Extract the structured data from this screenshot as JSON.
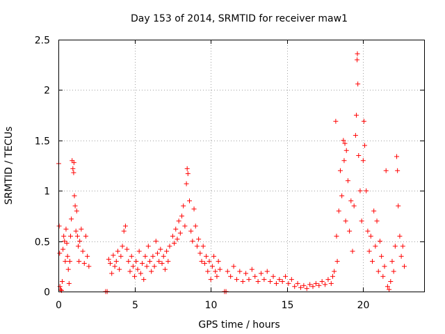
{
  "chart_data": {
    "type": "scatter",
    "title": "Day 153 of 2014, SRMTID for receiver maw1",
    "xlabel": "GPS time / hours",
    "ylabel": "SRMTID / TECUs",
    "xlim": [
      0,
      24
    ],
    "ylim": [
      0,
      2.5
    ],
    "xticks": [
      0,
      5,
      10,
      15,
      20
    ],
    "yticks": [
      0,
      0.5,
      1,
      1.5,
      2,
      2.5
    ],
    "xtick_labels": [
      "0",
      "5",
      "10",
      "15",
      "20"
    ],
    "ytick_labels": [
      "0",
      "0.5",
      "1",
      "1.5",
      "2",
      "2.5"
    ],
    "grid": true,
    "marker": "+",
    "series": [
      {
        "name": "maw1",
        "color": "#ff0000",
        "points": [
          [
            0.02,
            1.27
          ],
          [
            0.05,
            0.65
          ],
          [
            0.08,
            0.38
          ],
          [
            0.1,
            0.05
          ],
          [
            0.15,
            0.02
          ],
          [
            0.2,
            0.01
          ],
          [
            0.25,
            0.1
          ],
          [
            0.3,
            0.42
          ],
          [
            0.35,
            0.55
          ],
          [
            0.4,
            0.5
          ],
          [
            0.45,
            0.3
          ],
          [
            0.5,
            0.62
          ],
          [
            0.55,
            0.48
          ],
          [
            0.6,
            0.35
          ],
          [
            0.65,
            0.22
          ],
          [
            0.7,
            0.08
          ],
          [
            0.75,
            0.3
          ],
          [
            0.8,
            0.55
          ],
          [
            0.85,
            0.72
          ],
          [
            0.9,
            1.3
          ],
          [
            0.95,
            1.22
          ],
          [
            1.0,
            1.18
          ],
          [
            1.02,
            1.28
          ],
          [
            1.05,
            0.95
          ],
          [
            1.1,
            0.85
          ],
          [
            1.15,
            0.6
          ],
          [
            1.2,
            0.8
          ],
          [
            1.25,
            0.55
          ],
          [
            1.3,
            0.45
          ],
          [
            1.35,
            0.3
          ],
          [
            1.4,
            0.5
          ],
          [
            1.5,
            0.62
          ],
          [
            1.6,
            0.4
          ],
          [
            1.7,
            0.28
          ],
          [
            1.8,
            0.55
          ],
          [
            1.9,
            0.35
          ],
          [
            2.0,
            0.25
          ],
          [
            3.1,
            0.0
          ],
          [
            3.2,
            0.0
          ],
          [
            3.3,
            0.32
          ],
          [
            3.4,
            0.28
          ],
          [
            3.5,
            0.18
          ],
          [
            3.6,
            0.36
          ],
          [
            3.7,
            0.25
          ],
          [
            3.8,
            0.3
          ],
          [
            3.9,
            0.4
          ],
          [
            4.0,
            0.22
          ],
          [
            4.1,
            0.35
          ],
          [
            4.2,
            0.45
          ],
          [
            4.3,
            0.6
          ],
          [
            4.4,
            0.65
          ],
          [
            4.5,
            0.42
          ],
          [
            4.6,
            0.3
          ],
          [
            4.7,
            0.2
          ],
          [
            4.8,
            0.35
          ],
          [
            4.9,
            0.25
          ],
          [
            5.0,
            0.15
          ],
          [
            5.1,
            0.3
          ],
          [
            5.2,
            0.22
          ],
          [
            5.3,
            0.4
          ],
          [
            5.4,
            0.18
          ],
          [
            5.5,
            0.28
          ],
          [
            5.6,
            0.12
          ],
          [
            5.7,
            0.35
          ],
          [
            5.8,
            0.25
          ],
          [
            5.9,
            0.45
          ],
          [
            6.0,
            0.3
          ],
          [
            6.1,
            0.2
          ],
          [
            6.2,
            0.35
          ],
          [
            6.3,
            0.25
          ],
          [
            6.4,
            0.5
          ],
          [
            6.5,
            0.38
          ],
          [
            6.6,
            0.3
          ],
          [
            6.7,
            0.42
          ],
          [
            6.8,
            0.28
          ],
          [
            6.9,
            0.35
          ],
          [
            7.0,
            0.22
          ],
          [
            7.1,
            0.4
          ],
          [
            7.2,
            0.3
          ],
          [
            7.3,
            0.45
          ],
          [
            7.5,
            0.55
          ],
          [
            7.6,
            0.48
          ],
          [
            7.7,
            0.62
          ],
          [
            7.8,
            0.52
          ],
          [
            7.9,
            0.7
          ],
          [
            8.0,
            0.58
          ],
          [
            8.1,
            0.75
          ],
          [
            8.2,
            0.85
          ],
          [
            8.3,
            0.65
          ],
          [
            8.4,
            1.07
          ],
          [
            8.45,
            1.22
          ],
          [
            8.5,
            1.17
          ],
          [
            8.6,
            0.9
          ],
          [
            8.7,
            0.6
          ],
          [
            8.8,
            0.5
          ],
          [
            8.9,
            0.82
          ],
          [
            9.0,
            0.65
          ],
          [
            9.1,
            0.45
          ],
          [
            9.2,
            0.52
          ],
          [
            9.3,
            0.38
          ],
          [
            9.4,
            0.3
          ],
          [
            9.5,
            0.45
          ],
          [
            9.6,
            0.28
          ],
          [
            9.7,
            0.35
          ],
          [
            9.8,
            0.2
          ],
          [
            9.9,
            0.3
          ],
          [
            10.0,
            0.12
          ],
          [
            10.1,
            0.25
          ],
          [
            10.2,
            0.35
          ],
          [
            10.3,
            0.2
          ],
          [
            10.4,
            0.15
          ],
          [
            10.5,
            0.3
          ],
          [
            10.6,
            0.22
          ],
          [
            10.9,
            0.0
          ],
          [
            11.0,
            0.0
          ],
          [
            11.1,
            0.2
          ],
          [
            11.3,
            0.15
          ],
          [
            11.5,
            0.25
          ],
          [
            11.7,
            0.12
          ],
          [
            11.9,
            0.2
          ],
          [
            12.1,
            0.1
          ],
          [
            12.3,
            0.18
          ],
          [
            12.5,
            0.12
          ],
          [
            12.7,
            0.22
          ],
          [
            12.9,
            0.15
          ],
          [
            13.1,
            0.1
          ],
          [
            13.3,
            0.18
          ],
          [
            13.5,
            0.12
          ],
          [
            13.7,
            0.2
          ],
          [
            13.9,
            0.1
          ],
          [
            14.1,
            0.15
          ],
          [
            14.3,
            0.08
          ],
          [
            14.5,
            0.12
          ],
          [
            14.7,
            0.1
          ],
          [
            14.9,
            0.15
          ],
          [
            15.1,
            0.08
          ],
          [
            15.3,
            0.12
          ],
          [
            15.5,
            0.05
          ],
          [
            15.7,
            0.08
          ],
          [
            15.9,
            0.04
          ],
          [
            16.1,
            0.06
          ],
          [
            16.3,
            0.03
          ],
          [
            16.5,
            0.07
          ],
          [
            16.7,
            0.05
          ],
          [
            16.9,
            0.08
          ],
          [
            17.1,
            0.06
          ],
          [
            17.3,
            0.1
          ],
          [
            17.5,
            0.07
          ],
          [
            17.7,
            0.12
          ],
          [
            17.9,
            0.08
          ],
          [
            18.0,
            0.15
          ],
          [
            18.1,
            0.2
          ],
          [
            18.2,
            1.69
          ],
          [
            18.25,
            0.55
          ],
          [
            18.3,
            0.3
          ],
          [
            18.4,
            0.8
          ],
          [
            18.5,
            1.2
          ],
          [
            18.6,
            0.95
          ],
          [
            18.7,
            1.5
          ],
          [
            18.75,
            1.3
          ],
          [
            18.8,
            1.47
          ],
          [
            18.85,
            0.7
          ],
          [
            18.9,
            1.4
          ],
          [
            19.0,
            1.1
          ],
          [
            19.1,
            0.6
          ],
          [
            19.2,
            0.9
          ],
          [
            19.3,
            0.4
          ],
          [
            19.4,
            0.85
          ],
          [
            19.5,
            1.55
          ],
          [
            19.55,
            1.75
          ],
          [
            19.6,
            2.3
          ],
          [
            19.62,
            2.36
          ],
          [
            19.65,
            2.06
          ],
          [
            19.7,
            1.35
          ],
          [
            19.8,
            1.0
          ],
          [
            19.9,
            0.7
          ],
          [
            20.0,
            1.3
          ],
          [
            20.05,
            1.69
          ],
          [
            20.1,
            1.45
          ],
          [
            20.2,
            1.0
          ],
          [
            20.3,
            0.6
          ],
          [
            20.4,
            0.4
          ],
          [
            20.5,
            0.55
          ],
          [
            20.6,
            0.3
          ],
          [
            20.7,
            0.8
          ],
          [
            20.8,
            0.45
          ],
          [
            20.9,
            0.7
          ],
          [
            21.0,
            0.2
          ],
          [
            21.1,
            0.5
          ],
          [
            21.2,
            0.35
          ],
          [
            21.3,
            0.15
          ],
          [
            21.4,
            0.25
          ],
          [
            21.5,
            1.2
          ],
          [
            21.6,
            0.05
          ],
          [
            21.7,
            0.02
          ],
          [
            21.8,
            0.1
          ],
          [
            21.9,
            0.3
          ],
          [
            22.0,
            0.2
          ],
          [
            22.1,
            0.45
          ],
          [
            22.2,
            1.34
          ],
          [
            22.25,
            1.2
          ],
          [
            22.3,
            0.85
          ],
          [
            22.4,
            0.55
          ],
          [
            22.5,
            0.35
          ],
          [
            22.6,
            0.45
          ],
          [
            22.7,
            0.25
          ]
        ]
      }
    ]
  }
}
